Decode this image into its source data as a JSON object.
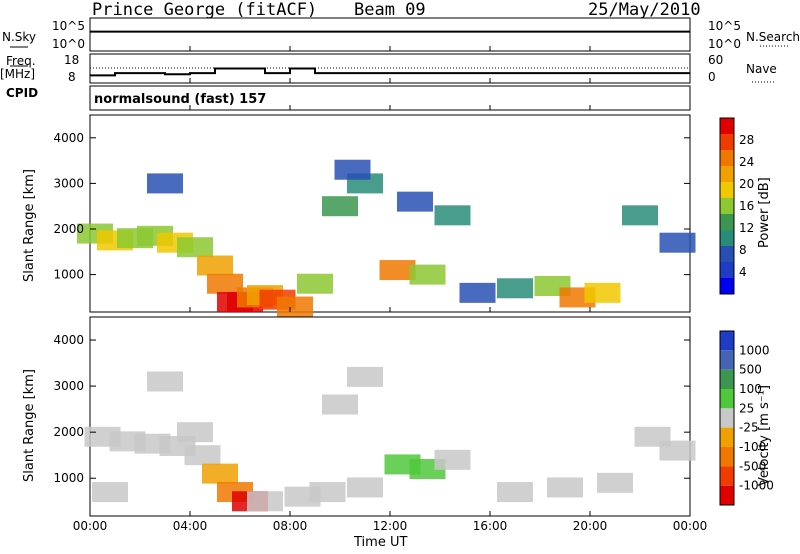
{
  "header": {
    "station": "Prince George (fitACF)",
    "beam": "Beam 09",
    "date": "25/May/2010"
  },
  "panels": {
    "nsky_label": "N.Sky",
    "nsky_ticks": [
      "10^5",
      "10^0"
    ],
    "nsearch_label": "N.Search",
    "nsearch_ticks": [
      "10^5",
      "10^0"
    ],
    "freq_label": "Freq.",
    "freq_unit": "[MHz]",
    "freq_ticks": [
      "18",
      "8"
    ],
    "nave_label": "Nave",
    "nave_ticks": [
      "60",
      "0"
    ],
    "cpid_label": "CPID",
    "cpid_value": "normalsound (fast) 157"
  },
  "axes": {
    "ylabel": "Slant Range [km]",
    "xlabel": "Time UT",
    "yticks": [
      "4000",
      "3000",
      "2000",
      "1000"
    ],
    "xticks": [
      "00:00",
      "04:00",
      "08:00",
      "12:00",
      "16:00",
      "20:00",
      "00:00"
    ]
  },
  "colorbars": {
    "power": {
      "label": "Power [dB]",
      "ticks": [
        "28",
        "24",
        "20",
        "16",
        "12",
        "8",
        "4"
      ],
      "colors": [
        "#e00000",
        "#f03c00",
        "#f07800",
        "#f0a000",
        "#f0c800",
        "#8cc832",
        "#3c9650",
        "#288c78",
        "#2850b4",
        "#1e3cc8",
        "#0000f0"
      ]
    },
    "velocity": {
      "label": "Velocity [m s⁻¹]",
      "ticks": [
        "1000",
        "500",
        "100",
        "25",
        "-25",
        "-100",
        "-500",
        "-1000"
      ],
      "colors": [
        "#1e3cc8",
        "#4664b4",
        "#3c9650",
        "#50c83c",
        "#c8c8c8",
        "#f0a000",
        "#f07800",
        "#f03c00",
        "#e00000"
      ]
    }
  },
  "chart_data": [
    {
      "type": "line",
      "title": "N.Sky / N.Search",
      "x": [
        "00:00",
        "04:00",
        "08:00",
        "12:00",
        "16:00",
        "20:00",
        "00:00"
      ],
      "series": [
        {
          "name": "N.Sky",
          "values": [
            3,
            3,
            3,
            3,
            3,
            3,
            3
          ]
        },
        {
          "name": "N.Search",
          "values": [
            3,
            3,
            3,
            3,
            3,
            3,
            3
          ]
        }
      ],
      "ylim": [
        0,
        5
      ]
    },
    {
      "type": "line",
      "title": "Freq. / Nave",
      "x": [
        0,
        1,
        2,
        3,
        4,
        5,
        6,
        7,
        8,
        9,
        10,
        11,
        12,
        13,
        14,
        15,
        16,
        17,
        18,
        19,
        20,
        21,
        22,
        23,
        24
      ],
      "series": [
        {
          "name": "Freq.",
          "values": [
            10,
            11,
            11,
            10.5,
            11,
            13,
            13,
            11,
            13,
            11,
            11,
            11,
            11,
            11,
            11,
            11,
            11,
            11,
            11,
            11,
            11,
            11,
            11,
            11,
            11
          ]
        },
        {
          "name": "Nave",
          "values": [
            30,
            30,
            30,
            30,
            30,
            30,
            30,
            30,
            30,
            30,
            30,
            30,
            30,
            30,
            30,
            30,
            30,
            30,
            30,
            30,
            30,
            30,
            30,
            30,
            30
          ]
        }
      ],
      "ylim": [
        8,
        18
      ]
    },
    {
      "type": "heatmap",
      "title": "Power",
      "xlabel": "Time UT",
      "ylabel": "Slant Range [km]",
      "xlim": [
        0,
        24
      ],
      "ylim": [
        180,
        4500
      ],
      "zlabel": "Power [dB]",
      "zlim": [
        0,
        30
      ],
      "cells": [
        [
          0.2,
          1900,
          14
        ],
        [
          1.0,
          1750,
          18
        ],
        [
          1.8,
          1800,
          14
        ],
        [
          2.6,
          1850,
          16
        ],
        [
          3.4,
          1700,
          18
        ],
        [
          4.2,
          1600,
          16
        ],
        [
          5.0,
          1200,
          20
        ],
        [
          5.4,
          800,
          24
        ],
        [
          5.8,
          400,
          28
        ],
        [
          6.2,
          400,
          28
        ],
        [
          6.6,
          500,
          24
        ],
        [
          7.0,
          550,
          20
        ],
        [
          7.5,
          450,
          26
        ],
        [
          8.2,
          300,
          24
        ],
        [
          9.0,
          800,
          16
        ],
        [
          10.0,
          2500,
          12
        ],
        [
          11.0,
          3000,
          10
        ],
        [
          12.3,
          1100,
          22
        ],
        [
          13.5,
          1000,
          16
        ],
        [
          14.5,
          2300,
          10
        ],
        [
          15.5,
          600,
          8
        ],
        [
          17.0,
          700,
          10
        ],
        [
          18.5,
          750,
          16
        ],
        [
          19.5,
          500,
          24
        ],
        [
          20.5,
          600,
          18
        ],
        [
          22.0,
          2300,
          10
        ],
        [
          23.5,
          1700,
          8
        ],
        [
          3.0,
          3000,
          8
        ],
        [
          10.5,
          3300,
          6
        ],
        [
          13.0,
          2600,
          8
        ]
      ]
    },
    {
      "type": "heatmap",
      "title": "Velocity",
      "xlabel": "Time UT",
      "ylabel": "Slant Range [km]",
      "xlim": [
        0,
        24
      ],
      "ylim": [
        180,
        4500
      ],
      "zlabel": "Velocity [m s⁻¹]",
      "zlim": [
        -1000,
        1000
      ],
      "cells": [
        [
          0.5,
          1900,
          0
        ],
        [
          1.5,
          1800,
          0
        ],
        [
          2.5,
          1750,
          0
        ],
        [
          3.5,
          1700,
          0
        ],
        [
          4.5,
          1500,
          -100
        ],
        [
          5.2,
          1100,
          -300
        ],
        [
          5.8,
          700,
          -500
        ],
        [
          6.4,
          500,
          -800
        ],
        [
          7.0,
          500,
          0
        ],
        [
          8.5,
          600,
          0
        ],
        [
          9.5,
          700,
          0
        ],
        [
          11.0,
          800,
          0
        ],
        [
          12.5,
          1300,
          150
        ],
        [
          13.5,
          1200,
          150
        ],
        [
          14.5,
          1400,
          100
        ],
        [
          11.0,
          3200,
          0
        ],
        [
          10.0,
          2600,
          0
        ],
        [
          17.0,
          700,
          0
        ],
        [
          19.0,
          800,
          0
        ],
        [
          21.0,
          900,
          0
        ],
        [
          22.5,
          1900,
          0
        ],
        [
          3.0,
          3100,
          -100
        ],
        [
          4.2,
          2000,
          0
        ],
        [
          0.8,
          700,
          0
        ],
        [
          23.5,
          1600,
          0
        ]
      ]
    }
  ]
}
